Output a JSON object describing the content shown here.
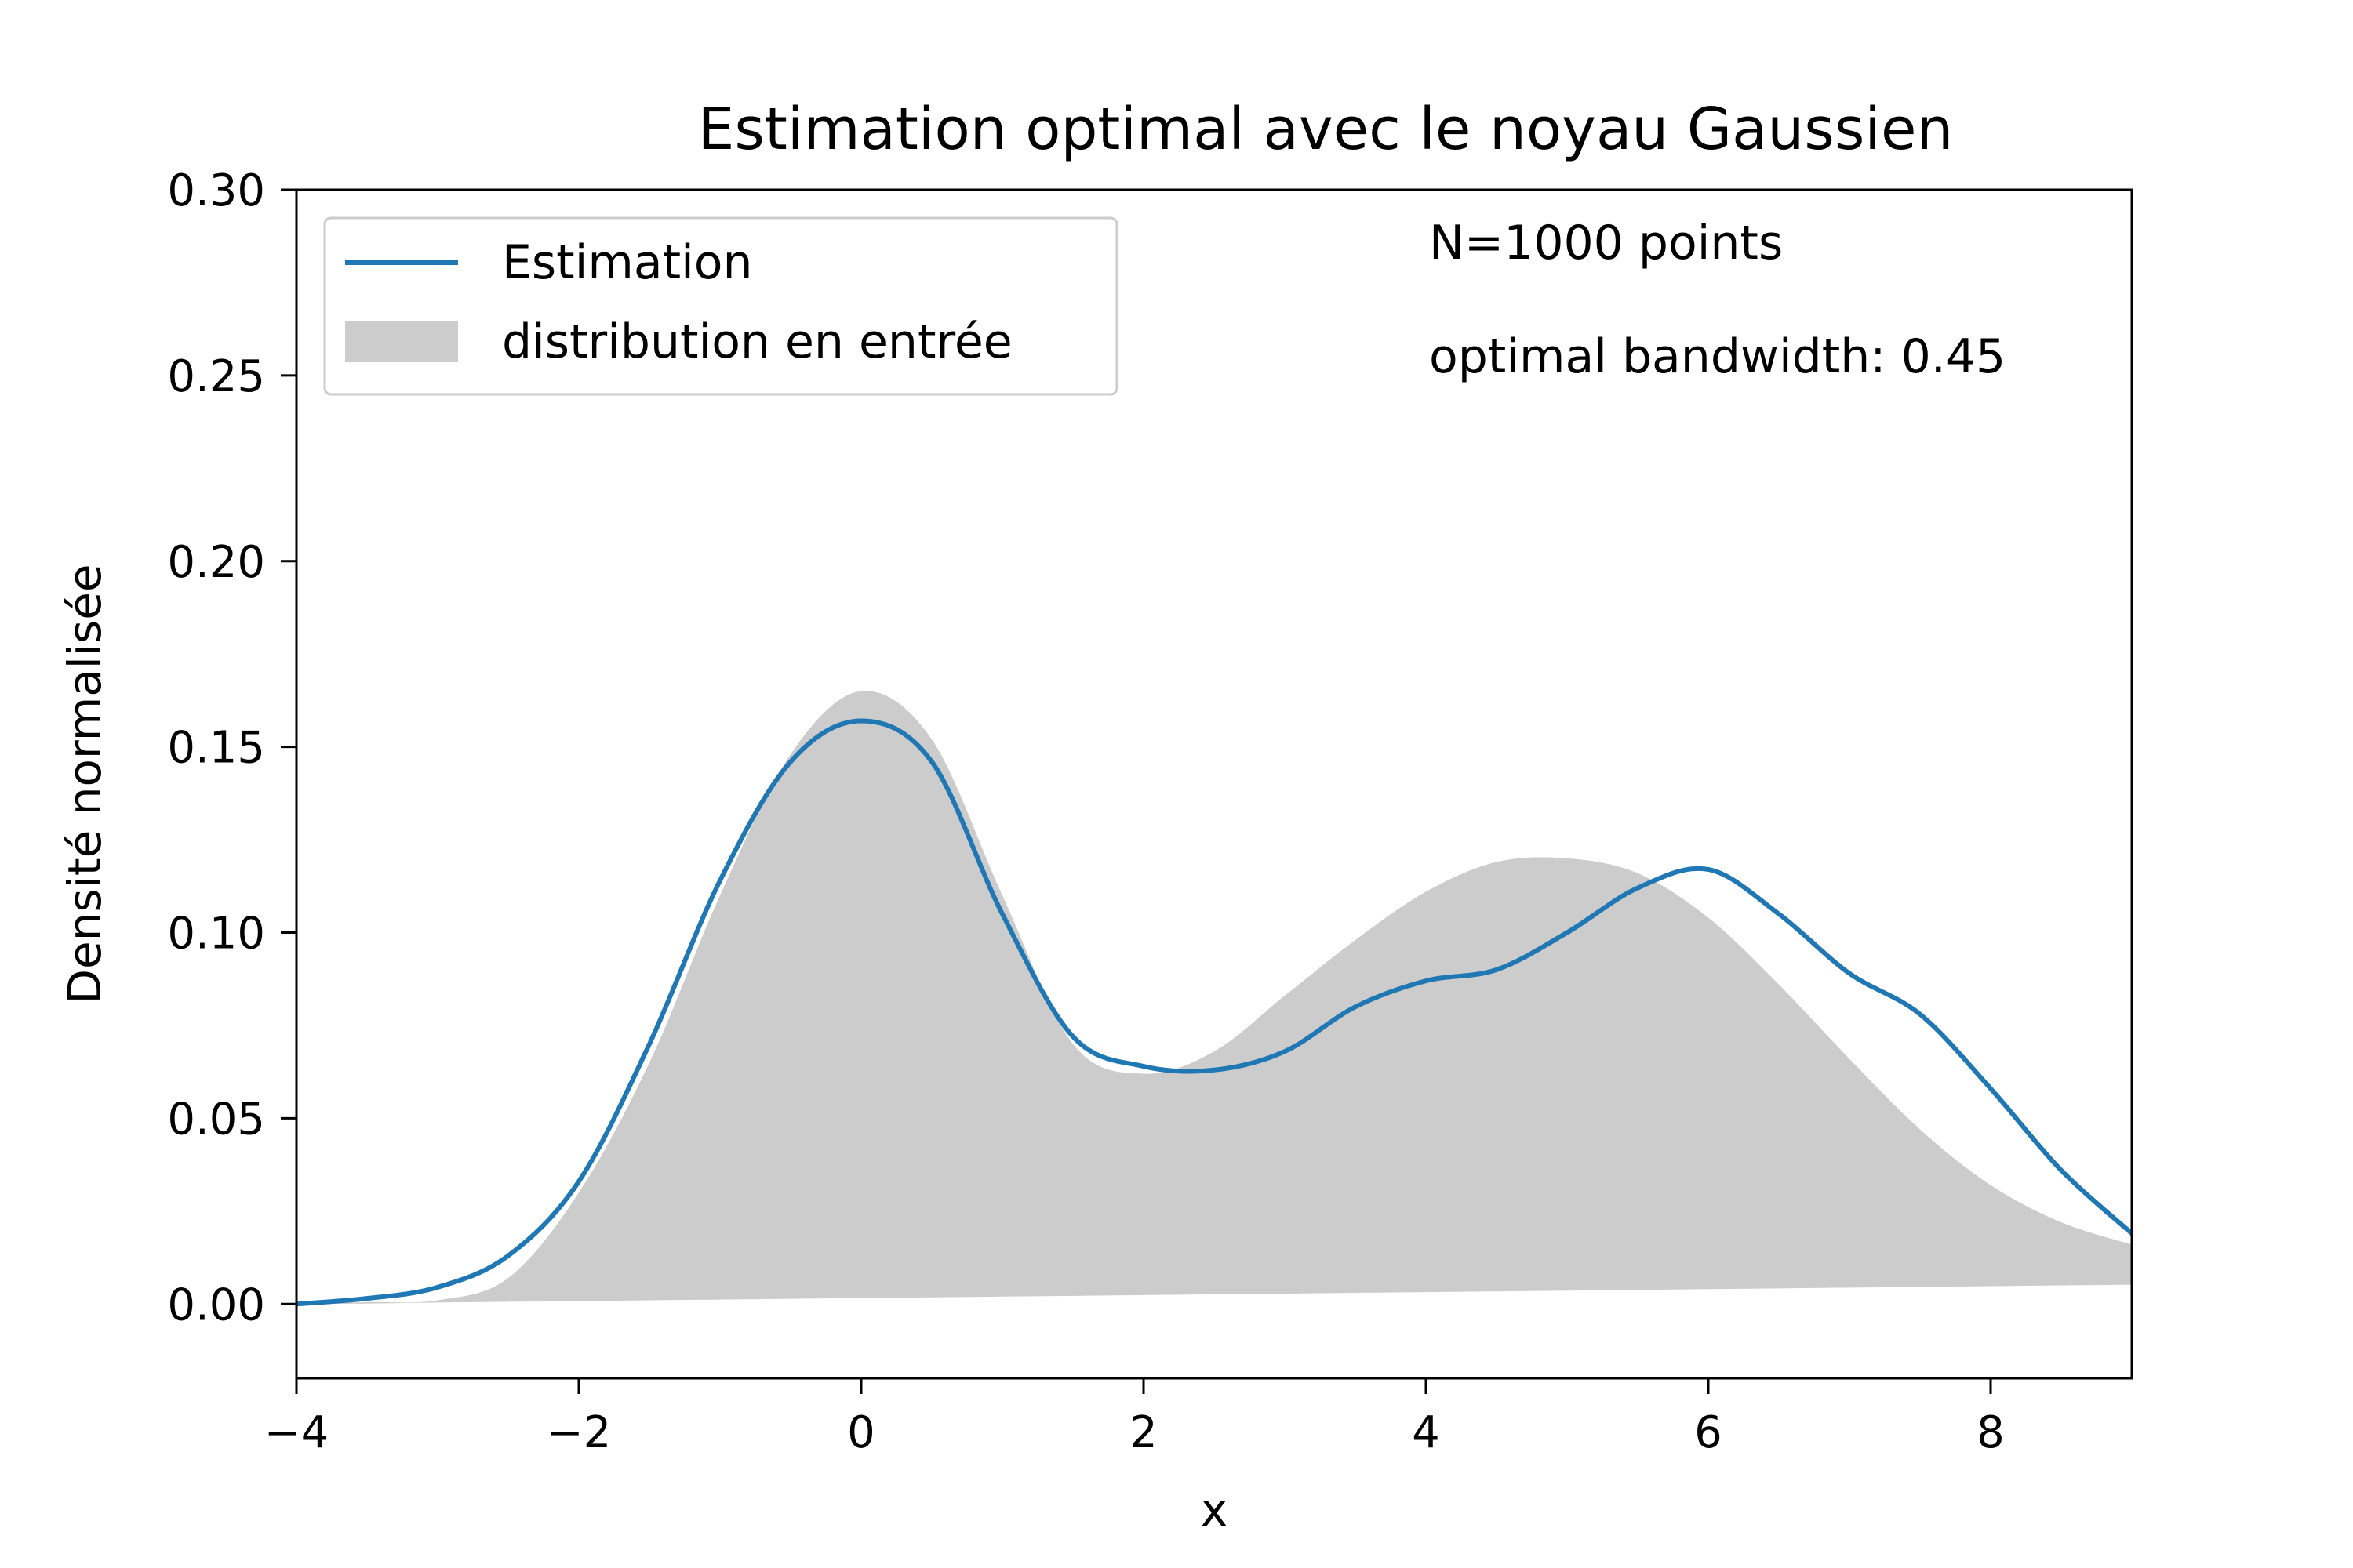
{
  "chart_data": {
    "type": "area",
    "title": "Estimation optimal avec le noyau Gaussien",
    "xlabel": "x",
    "ylabel": "Densité normalisée",
    "xlim": [
      -4,
      9
    ],
    "ylim": [
      -0.02,
      0.3
    ],
    "grid": false,
    "legend_position": "top-left",
    "x_ticks": [
      -4,
      -2,
      0,
      2,
      4,
      6,
      8
    ],
    "x_tick_labels": [
      "−4",
      "−2",
      "0",
      "2",
      "4",
      "6",
      "8"
    ],
    "y_ticks": [
      0.0,
      0.05,
      0.1,
      0.15,
      0.2,
      0.25,
      0.3
    ],
    "y_tick_labels": [
      "0.00",
      "0.05",
      "0.10",
      "0.15",
      "0.20",
      "0.25",
      "0.30"
    ],
    "annotations": [
      "N=1000 points",
      "optimal bandwidth: 0.45"
    ],
    "series": [
      {
        "name": "Estimation",
        "kind": "line",
        "color": "#1f77b4",
        "x": [
          -4,
          -3.5,
          -3,
          -2.5,
          -2,
          -1.5,
          -1,
          -0.5,
          0,
          0.5,
          1,
          1.5,
          2,
          2.5,
          3,
          3.5,
          4,
          4.5,
          5,
          5.5,
          6,
          6.5,
          7,
          7.5,
          8,
          8.5,
          9
        ],
        "y": [
          0.0,
          0.0015,
          0.0045,
          0.013,
          0.033,
          0.07,
          0.114,
          0.146,
          0.157,
          0.146,
          0.105,
          0.072,
          0.064,
          0.063,
          0.068,
          0.08,
          0.087,
          0.09,
          0.1,
          0.112,
          0.117,
          0.105,
          0.089,
          0.078,
          0.058,
          0.036,
          0.019
        ]
      },
      {
        "name": "distribution en entrée",
        "kind": "area",
        "color": "#cccccc",
        "x": [
          -4,
          -3.5,
          -3,
          -2.5,
          -2,
          -1.5,
          -1,
          -0.5,
          0,
          0.5,
          1,
          1.5,
          2,
          2.5,
          3,
          3.5,
          4,
          4.5,
          5,
          5.5,
          6,
          6.5,
          7,
          7.5,
          8,
          8.5,
          9
        ],
        "y_upper": [
          0.0,
          0.0005,
          0.001,
          0.007,
          0.03,
          0.065,
          0.11,
          0.148,
          0.165,
          0.152,
          0.11,
          0.07,
          0.062,
          0.068,
          0.083,
          0.098,
          0.111,
          0.119,
          0.12,
          0.116,
          0.104,
          0.086,
          0.066,
          0.047,
          0.032,
          0.022,
          0.016
        ],
        "y_lower": [
          0.0,
          0.0001,
          0.0004,
          0.0006,
          0.0008,
          0.001,
          0.0012,
          0.0014,
          0.0016,
          0.0018,
          0.002,
          0.0022,
          0.0024,
          0.0026,
          0.0028,
          0.003,
          0.0032,
          0.0034,
          0.0036,
          0.0038,
          0.004,
          0.0042,
          0.0044,
          0.0046,
          0.0048,
          0.005,
          0.0052
        ]
      }
    ]
  }
}
